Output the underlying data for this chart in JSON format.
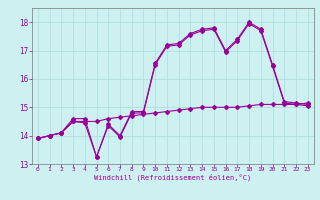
{
  "xlabel": "Windchill (Refroidissement éolien,°C)",
  "background_color": "#cdf0f0",
  "line_color": "#990099",
  "xlim": [
    -0.5,
    23.5
  ],
  "ylim": [
    13.0,
    18.5
  ],
  "yticks": [
    13,
    14,
    15,
    16,
    17,
    18
  ],
  "xticks": [
    0,
    1,
    2,
    3,
    4,
    5,
    6,
    7,
    8,
    9,
    10,
    11,
    12,
    13,
    14,
    15,
    16,
    17,
    18,
    19,
    20,
    21,
    22,
    23
  ],
  "s1_x": [
    0,
    1,
    2,
    3,
    4,
    5,
    6,
    7,
    8,
    9,
    10,
    11,
    12,
    13,
    14,
    15,
    16,
    17,
    18,
    19,
    20,
    21,
    22,
    23
  ],
  "s1_y": [
    13.9,
    14.0,
    14.1,
    14.6,
    14.6,
    13.25,
    14.4,
    14.0,
    14.85,
    14.85,
    16.55,
    17.2,
    17.25,
    17.6,
    17.75,
    17.8,
    17.0,
    17.4,
    18.0,
    17.75,
    16.5,
    15.2,
    15.15,
    15.1
  ],
  "s2_x": [
    0,
    1,
    2,
    3,
    4,
    5,
    6,
    7,
    8,
    9,
    10,
    11,
    12,
    13,
    14,
    15,
    16,
    17,
    18,
    19,
    20,
    21,
    22,
    23
  ],
  "s2_y": [
    13.9,
    14.0,
    14.1,
    14.5,
    14.5,
    14.5,
    14.6,
    14.65,
    14.7,
    14.75,
    14.8,
    14.85,
    14.9,
    14.95,
    15.0,
    15.0,
    15.0,
    15.0,
    15.05,
    15.1,
    15.1,
    15.1,
    15.1,
    15.15
  ],
  "s3_x": [
    0,
    1,
    2,
    3,
    4,
    5,
    6,
    7,
    8,
    9,
    10,
    11,
    12,
    13,
    14,
    15,
    16,
    17,
    18,
    19,
    20,
    21,
    22,
    23
  ],
  "s3_y": [
    13.9,
    14.0,
    14.1,
    14.5,
    14.45,
    13.25,
    14.35,
    13.95,
    14.8,
    14.8,
    16.5,
    17.15,
    17.2,
    17.55,
    17.7,
    17.75,
    16.95,
    17.35,
    17.95,
    17.7,
    16.45,
    15.15,
    15.1,
    15.05
  ]
}
